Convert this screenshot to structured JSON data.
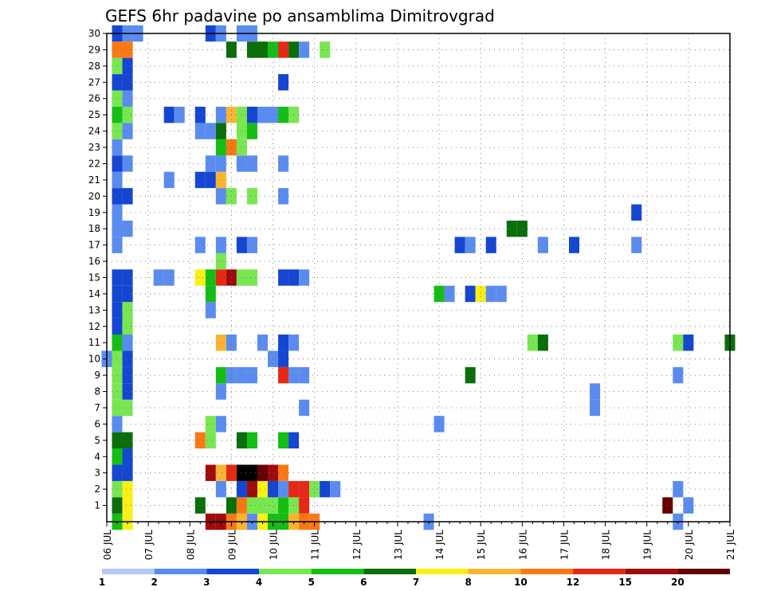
{
  "chart_data": {
    "type": "heatmap",
    "title": "GEFS 6hr padavine po ansamblima Dimitrovgrad",
    "x_tick_labels": [
      "06 JUL",
      "07 JUL",
      "08 JUL",
      "09 JUL",
      "10 JUL",
      "11 JUL",
      "12 JUL",
      "13 JUL",
      "14 JUL",
      "15 JUL",
      "16 JUL",
      "17 JUL",
      "18 JUL",
      "19 JUL",
      "20 JUL",
      "21 JUL"
    ],
    "y_tick_labels": [
      "1",
      "2",
      "3",
      "4",
      "5",
      "6",
      "7",
      "8",
      "9",
      "10",
      "11",
      "12",
      "13",
      "14",
      "15",
      "16",
      "17",
      "18",
      "19",
      "20",
      "21",
      "22",
      "23",
      "24",
      "25",
      "26",
      "27",
      "28",
      "29",
      "30"
    ],
    "x_range_days": [
      0,
      15
    ],
    "y_range": [
      0,
      30
    ],
    "grid": true,
    "legend": {
      "position": "bottom",
      "levels": [
        "1",
        "2",
        "3",
        "4",
        "5",
        "6",
        "7",
        "8",
        "10",
        "12",
        "15",
        "20"
      ],
      "colors": [
        "#b4c8f5",
        "#5a8cf0",
        "#1446d2",
        "#78e650",
        "#14be14",
        "#0a6e0a",
        "#faf014",
        "#fab432",
        "#fa7814",
        "#e62814",
        "#a00a0a",
        "#640000"
      ]
    },
    "colors_by_class": [
      "#b4c8f5",
      "#5a8cf0",
      "#1446d2",
      "#78e650",
      "#14be14",
      "#0a6e0a",
      "#faf014",
      "#fab432",
      "#fa7814",
      "#e62814",
      "#a00a0a",
      "#640000"
    ],
    "cells": [
      [
        0.25,
        0,
        4
      ],
      [
        0.25,
        1,
        5
      ],
      [
        0.25,
        2,
        3
      ],
      [
        0.25,
        3,
        2
      ],
      [
        0.25,
        4,
        4
      ],
      [
        0.25,
        5,
        5
      ],
      [
        0.25,
        6,
        1
      ],
      [
        0.25,
        7,
        3
      ],
      [
        0.25,
        8,
        3
      ],
      [
        0.25,
        9,
        3
      ],
      [
        0.25,
        10,
        3
      ],
      [
        0.25,
        11,
        4
      ],
      [
        0.25,
        12,
        2
      ],
      [
        0.25,
        13,
        2
      ],
      [
        0.25,
        14,
        2
      ],
      [
        0.25,
        15,
        2
      ],
      [
        0.25,
        17,
        1
      ],
      [
        0.25,
        18,
        1
      ],
      [
        0.25,
        19,
        1
      ],
      [
        0.25,
        20,
        2
      ],
      [
        0.25,
        21,
        1
      ],
      [
        0.25,
        22,
        2
      ],
      [
        0.25,
        23,
        1
      ],
      [
        0.25,
        24,
        3
      ],
      [
        0.25,
        25,
        4
      ],
      [
        0.25,
        26,
        3
      ],
      [
        0.25,
        27,
        2
      ],
      [
        0.25,
        28,
        3
      ],
      [
        0.25,
        29,
        8
      ],
      [
        0.25,
        30,
        2
      ],
      [
        0.5,
        0,
        6
      ],
      [
        0.5,
        1,
        6
      ],
      [
        0.5,
        2,
        6
      ],
      [
        0.5,
        3,
        2
      ],
      [
        0.5,
        4,
        2
      ],
      [
        0.5,
        5,
        5
      ],
      [
        0.5,
        7,
        3
      ],
      [
        0.5,
        8,
        2
      ],
      [
        0.5,
        9,
        2
      ],
      [
        0.5,
        10,
        2
      ],
      [
        0.5,
        11,
        1
      ],
      [
        0.5,
        12,
        3
      ],
      [
        0.5,
        13,
        3
      ],
      [
        0.5,
        14,
        2
      ],
      [
        0.5,
        15,
        2
      ],
      [
        0.5,
        18,
        1
      ],
      [
        0.5,
        20,
        2
      ],
      [
        0.5,
        22,
        1
      ],
      [
        0.5,
        24,
        1
      ],
      [
        0.5,
        25,
        3
      ],
      [
        0.5,
        26,
        1
      ],
      [
        0.5,
        27,
        2
      ],
      [
        0.5,
        28,
        2
      ],
      [
        0.5,
        29,
        8
      ],
      [
        0.5,
        30,
        1
      ],
      [
        0,
        10,
        1
      ],
      [
        0.75,
        30,
        1
      ],
      [
        1.25,
        15,
        1
      ],
      [
        1.5,
        15,
        1
      ],
      [
        1.5,
        21,
        1
      ],
      [
        1.5,
        25,
        2
      ],
      [
        1.75,
        25,
        1
      ],
      [
        2.25,
        1,
        5
      ],
      [
        2.25,
        5,
        8
      ],
      [
        2.25,
        15,
        6
      ],
      [
        2.25,
        17,
        1
      ],
      [
        2.25,
        21,
        2
      ],
      [
        2.25,
        24,
        1
      ],
      [
        2.25,
        25,
        2
      ],
      [
        2.5,
        0,
        10
      ],
      [
        2.5,
        3,
        10
      ],
      [
        2.5,
        5,
        3
      ],
      [
        2.5,
        6,
        3
      ],
      [
        2.5,
        13,
        1
      ],
      [
        2.5,
        14,
        4
      ],
      [
        2.5,
        15,
        4
      ],
      [
        2.5,
        21,
        2
      ],
      [
        2.5,
        22,
        1
      ],
      [
        2.5,
        24,
        1
      ],
      [
        2.5,
        30,
        2
      ],
      [
        2.75,
        0,
        10
      ],
      [
        2.75,
        2,
        1
      ],
      [
        2.75,
        3,
        7
      ],
      [
        2.75,
        6,
        1
      ],
      [
        2.75,
        8,
        1
      ],
      [
        2.75,
        9,
        4
      ],
      [
        2.75,
        11,
        7
      ],
      [
        2.75,
        15,
        9
      ],
      [
        2.75,
        16,
        3
      ],
      [
        2.75,
        17,
        1
      ],
      [
        2.75,
        20,
        1
      ],
      [
        2.75,
        21,
        7
      ],
      [
        2.75,
        22,
        1
      ],
      [
        2.75,
        23,
        4
      ],
      [
        2.75,
        24,
        5
      ],
      [
        2.75,
        25,
        1
      ],
      [
        2.75,
        30,
        1
      ],
      [
        3.0,
        0,
        8
      ],
      [
        3.0,
        1,
        5
      ],
      [
        3.0,
        3,
        9
      ],
      [
        3.0,
        9,
        1
      ],
      [
        3.0,
        11,
        1
      ],
      [
        3.0,
        15,
        10
      ],
      [
        3.0,
        20,
        3
      ],
      [
        3.0,
        23,
        8
      ],
      [
        3.0,
        25,
        7
      ],
      [
        3.0,
        29,
        5
      ],
      [
        3.25,
        0,
        7
      ],
      [
        3.25,
        1,
        8
      ],
      [
        3.25,
        2,
        2
      ],
      [
        3.25,
        3,
        12
      ],
      [
        3.25,
        5,
        5
      ],
      [
        3.25,
        9,
        1
      ],
      [
        3.25,
        15,
        3
      ],
      [
        3.25,
        17,
        2
      ],
      [
        3.25,
        22,
        1
      ],
      [
        3.25,
        23,
        3
      ],
      [
        3.25,
        24,
        3
      ],
      [
        3.25,
        25,
        3
      ],
      [
        3.25,
        30,
        1
      ],
      [
        3.5,
        0,
        1
      ],
      [
        3.5,
        1,
        3
      ],
      [
        3.5,
        2,
        10
      ],
      [
        3.5,
        3,
        12
      ],
      [
        3.5,
        5,
        4
      ],
      [
        3.5,
        9,
        1
      ],
      [
        3.5,
        15,
        3
      ],
      [
        3.5,
        17,
        1
      ],
      [
        3.5,
        20,
        3
      ],
      [
        3.5,
        22,
        1
      ],
      [
        3.5,
        24,
        4
      ],
      [
        3.5,
        25,
        2
      ],
      [
        3.5,
        29,
        5
      ],
      [
        3.5,
        30,
        1
      ],
      [
        3.75,
        0,
        6
      ],
      [
        3.75,
        1,
        3
      ],
      [
        3.75,
        2,
        6
      ],
      [
        3.75,
        3,
        11
      ],
      [
        3.75,
        11,
        1
      ],
      [
        3.75,
        25,
        1
      ],
      [
        3.75,
        29,
        5
      ],
      [
        4.0,
        0,
        4
      ],
      [
        4.0,
        1,
        3
      ],
      [
        4.0,
        2,
        2
      ],
      [
        4.0,
        3,
        10
      ],
      [
        4.0,
        10,
        1
      ],
      [
        4.0,
        25,
        1
      ],
      [
        4.0,
        29,
        4
      ],
      [
        4.25,
        0,
        4
      ],
      [
        4.25,
        1,
        4
      ],
      [
        4.25,
        2,
        1
      ],
      [
        4.25,
        3,
        8
      ],
      [
        4.25,
        5,
        4
      ],
      [
        4.25,
        9,
        9
      ],
      [
        4.25,
        10,
        2
      ],
      [
        4.25,
        11,
        2
      ],
      [
        4.25,
        15,
        2
      ],
      [
        4.25,
        20,
        1
      ],
      [
        4.25,
        22,
        1
      ],
      [
        4.25,
        25,
        4
      ],
      [
        4.25,
        27,
        2
      ],
      [
        4.25,
        29,
        9
      ],
      [
        4.5,
        0,
        7
      ],
      [
        4.5,
        1,
        3
      ],
      [
        4.5,
        2,
        9
      ],
      [
        4.5,
        5,
        2
      ],
      [
        4.5,
        9,
        1
      ],
      [
        4.5,
        11,
        1
      ],
      [
        4.5,
        15,
        2
      ],
      [
        4.5,
        25,
        3
      ],
      [
        4.5,
        29,
        5
      ],
      [
        4.75,
        1,
        9
      ],
      [
        4.75,
        2,
        9
      ],
      [
        4.75,
        7,
        1
      ],
      [
        4.75,
        9,
        1
      ],
      [
        4.75,
        15,
        1
      ],
      [
        4.75,
        29,
        1
      ],
      [
        4.75,
        0,
        8
      ],
      [
        5.0,
        0,
        8
      ],
      [
        5.0,
        2,
        3
      ],
      [
        5.25,
        2,
        2
      ],
      [
        5.25,
        29,
        3
      ],
      [
        5.5,
        2,
        1
      ],
      [
        7.75,
        0,
        1
      ],
      [
        8.0,
        14,
        4
      ],
      [
        8.0,
        6,
        1
      ],
      [
        8.25,
        14,
        1
      ],
      [
        8.5,
        17,
        2
      ],
      [
        8.75,
        17,
        1
      ],
      [
        8.75,
        9,
        5
      ],
      [
        8.75,
        14,
        2
      ],
      [
        9.0,
        14,
        6
      ],
      [
        9.25,
        14,
        1
      ],
      [
        9.25,
        17,
        2
      ],
      [
        9.5,
        14,
        1
      ],
      [
        9.75,
        18,
        5
      ],
      [
        10.0,
        18,
        5
      ],
      [
        10.25,
        11,
        3
      ],
      [
        10.5,
        11,
        5
      ],
      [
        10.5,
        17,
        1
      ],
      [
        11.25,
        17,
        2
      ],
      [
        11.75,
        7,
        1
      ],
      [
        11.75,
        8,
        1
      ],
      [
        12.75,
        17,
        1
      ],
      [
        12.75,
        19,
        2
      ],
      [
        13.5,
        1,
        11
      ],
      [
        13.75,
        2,
        1
      ],
      [
        13.75,
        0,
        1
      ],
      [
        13.75,
        9,
        1
      ],
      [
        13.75,
        11,
        3
      ],
      [
        14.0,
        11,
        2
      ],
      [
        14.0,
        1,
        1
      ],
      [
        15.0,
        11,
        5
      ]
    ]
  }
}
